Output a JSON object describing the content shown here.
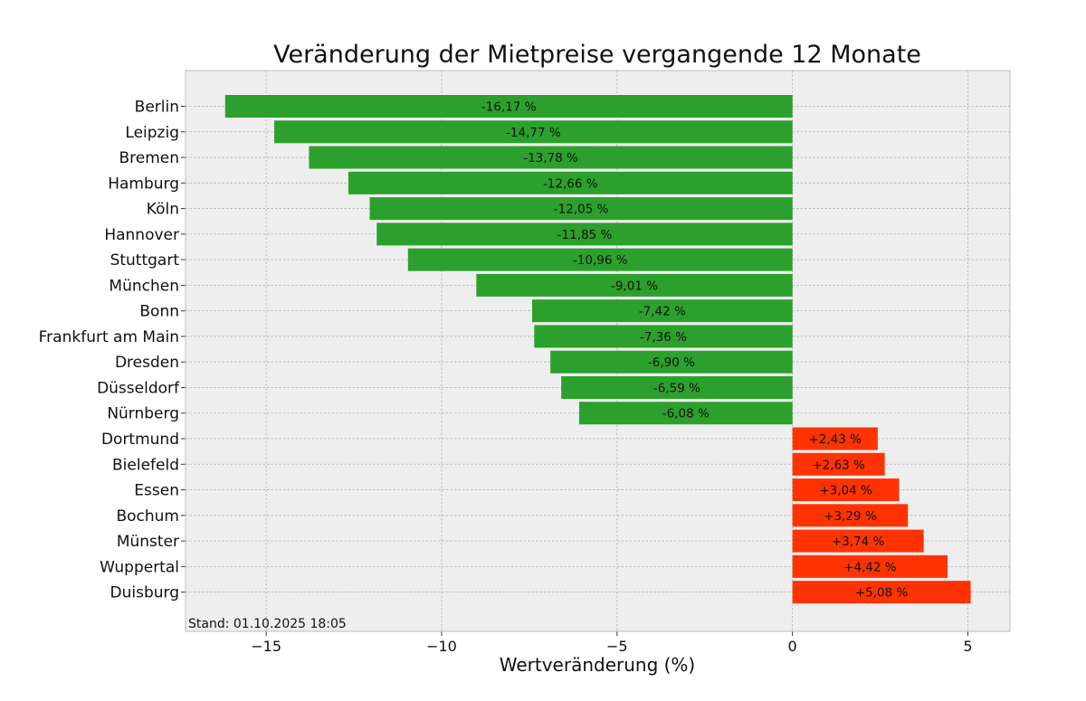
{
  "chart_data": {
    "type": "bar",
    "orientation": "horizontal",
    "title": "Veränderung der Mietpreise vergangende 12 Monate",
    "xlabel": "Wertveränderung (%)",
    "ylabel": "",
    "xlim": [
      -17.3,
      6.2
    ],
    "xticks": [
      -15,
      -10,
      -5,
      0,
      5
    ],
    "xtick_labels": [
      "−15",
      "−10",
      "−5",
      "0",
      "5"
    ],
    "grid": true,
    "categories": [
      "Berlin",
      "Leipzig",
      "Bremen",
      "Hamburg",
      "Köln",
      "Hannover",
      "Stuttgart",
      "München",
      "Bonn",
      "Frankfurt am Main",
      "Dresden",
      "Düsseldorf",
      "Nürnberg",
      "Dortmund",
      "Bielefeld",
      "Essen",
      "Bochum",
      "Münster",
      "Wuppertal",
      "Duisburg"
    ],
    "values": [
      -16.17,
      -14.77,
      -13.78,
      -12.66,
      -12.05,
      -11.85,
      -10.96,
      -9.01,
      -7.42,
      -7.36,
      -6.9,
      -6.59,
      -6.08,
      2.43,
      2.63,
      3.04,
      3.29,
      3.74,
      4.42,
      5.08
    ],
    "value_labels": [
      "-16,17 %",
      "-14,77 %",
      "-13,78 %",
      "-12,66 %",
      "-12,05 %",
      "-11,85 %",
      "-10,96 %",
      "-9,01 %",
      "-7,42 %",
      "-7,36 %",
      "-6,90 %",
      "-6,59 %",
      "-6,08 %",
      "+2,43 %",
      "+2,63 %",
      "+3,04 %",
      "+3,29 %",
      "+3,74 %",
      "+4,42 %",
      "+5,08 %"
    ],
    "annotation": "Stand: 01.10.2025 18:05",
    "colors": {
      "negative": "#2ca02c",
      "positive": "#ff3300",
      "plot_background": "#eeeeee",
      "grid": "#b0b0b0"
    }
  }
}
